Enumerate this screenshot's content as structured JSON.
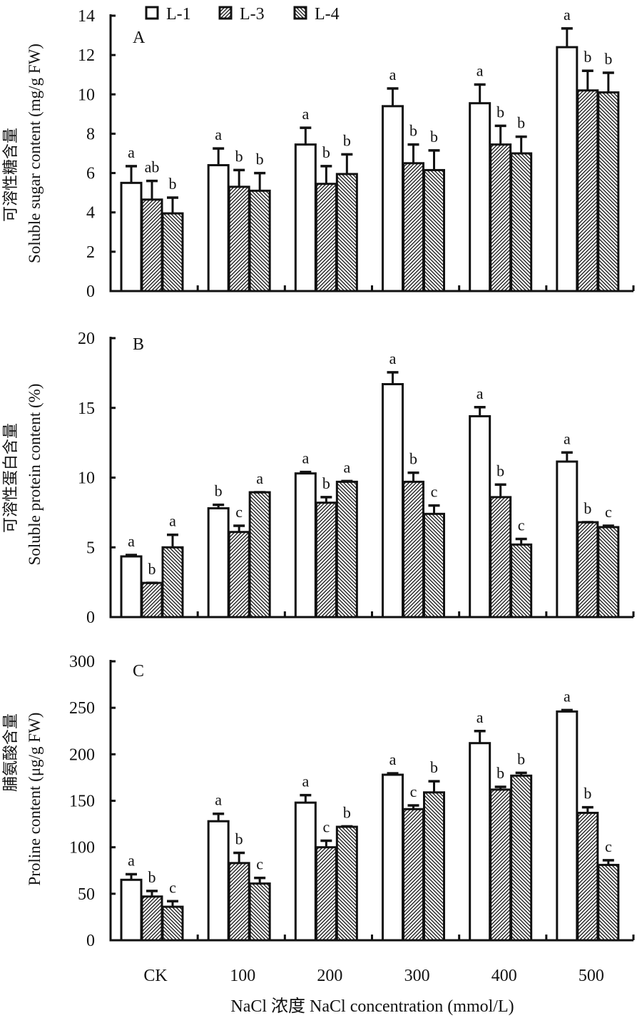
{
  "chart_data": [
    {
      "panel": "A",
      "type": "bar",
      "title": "",
      "panel_label": "A",
      "ylabel_cn": "可溶性糖含量",
      "ylabel": "Soluble sugar content (mg/g FW)",
      "ylim": [
        0,
        14
      ],
      "yticks": [
        0,
        2,
        4,
        6,
        8,
        10,
        12,
        14
      ],
      "categories": [
        "CK",
        "100",
        "200",
        "300",
        "400",
        "500"
      ],
      "series": [
        {
          "name": "L-1",
          "values": [
            5.5,
            6.4,
            7.45,
            9.4,
            9.55,
            12.4
          ],
          "errors": [
            0.85,
            0.85,
            0.85,
            0.9,
            0.95,
            0.95
          ],
          "letters": [
            "a",
            "a",
            "a",
            "a",
            "a",
            "a"
          ]
        },
        {
          "name": "L-3",
          "values": [
            4.65,
            5.3,
            5.45,
            6.5,
            7.45,
            10.2
          ],
          "errors": [
            0.95,
            0.85,
            0.9,
            0.95,
            0.95,
            1.0
          ],
          "letters": [
            "ab",
            "b",
            "b",
            "b",
            "b",
            "b"
          ]
        },
        {
          "name": "L-4",
          "values": [
            3.95,
            5.1,
            5.95,
            6.15,
            7.0,
            10.1
          ],
          "errors": [
            0.8,
            0.9,
            1.0,
            1.0,
            0.85,
            1.0
          ],
          "letters": [
            "b",
            "b",
            "b",
            "b",
            "b",
            "b"
          ]
        }
      ]
    },
    {
      "panel": "B",
      "type": "bar",
      "title": "",
      "panel_label": "B",
      "ylabel_cn": "可溶性蛋白含量",
      "ylabel": "Soluble protein content (%)",
      "ylim": [
        0,
        20
      ],
      "yticks": [
        0,
        5,
        10,
        15,
        20
      ],
      "categories": [
        "CK",
        "100",
        "200",
        "300",
        "400",
        "500"
      ],
      "series": [
        {
          "name": "L-1",
          "values": [
            4.35,
            7.8,
            10.3,
            16.7,
            14.4,
            11.15
          ],
          "errors": [
            0.1,
            0.25,
            0.1,
            0.85,
            0.65,
            0.65
          ],
          "letters": [
            "a",
            "b",
            "a",
            "a",
            "a",
            "a"
          ]
        },
        {
          "name": "L-3",
          "values": [
            2.45,
            6.1,
            8.2,
            9.7,
            8.6,
            6.8
          ],
          "errors": [
            0,
            0.45,
            0.4,
            0.65,
            0.9,
            0
          ],
          "letters": [
            "b",
            "c",
            "b",
            "b",
            "b",
            "b"
          ]
        },
        {
          "name": "L-4",
          "values": [
            5.0,
            8.95,
            9.7,
            7.4,
            5.2,
            6.45
          ],
          "errors": [
            0.9,
            0,
            0.05,
            0.6,
            0.4,
            0.1
          ],
          "letters": [
            "a",
            "a",
            "a",
            "c",
            "c",
            "c"
          ]
        }
      ]
    },
    {
      "panel": "C",
      "type": "bar",
      "title": "",
      "panel_label": "C",
      "ylabel_cn": "脯氨酸含量",
      "ylabel": "Proline content (μg/g FW)",
      "ylim": [
        0,
        300
      ],
      "yticks": [
        0,
        50,
        100,
        150,
        200,
        250,
        300
      ],
      "categories": [
        "CK",
        "100",
        "200",
        "300",
        "400",
        "500"
      ],
      "series": [
        {
          "name": "L-1",
          "values": [
            65,
            128,
            148,
            178,
            212,
            246
          ],
          "errors": [
            6,
            8,
            8,
            1.5,
            13,
            1.5
          ],
          "letters": [
            "a",
            "a",
            "a",
            "a",
            "a",
            "a"
          ]
        },
        {
          "name": "L-3",
          "values": [
            47,
            83,
            100,
            141,
            162,
            137
          ],
          "errors": [
            6,
            11,
            7,
            4,
            3,
            6
          ],
          "letters": [
            "b",
            "b",
            "c",
            "c",
            "b",
            "b"
          ]
        },
        {
          "name": "L-4",
          "values": [
            36,
            61,
            122,
            159,
            177,
            81
          ],
          "errors": [
            6,
            6,
            0.5,
            12,
            3,
            5
          ],
          "letters": [
            "c",
            "c",
            "b",
            "b",
            "b",
            "c"
          ]
        }
      ]
    }
  ],
  "legend": {
    "position": "top",
    "items": [
      {
        "name": "L-1",
        "pattern": "open"
      },
      {
        "name": "L-3",
        "pattern": "forward-hatch"
      },
      {
        "name": "L-4",
        "pattern": "back-hatch"
      }
    ]
  },
  "xlabel": "NaCl 浓度 NaCl concentration (mmol/L)",
  "xticks": [
    "CK",
    "100",
    "200",
    "300",
    "400",
    "500"
  ]
}
